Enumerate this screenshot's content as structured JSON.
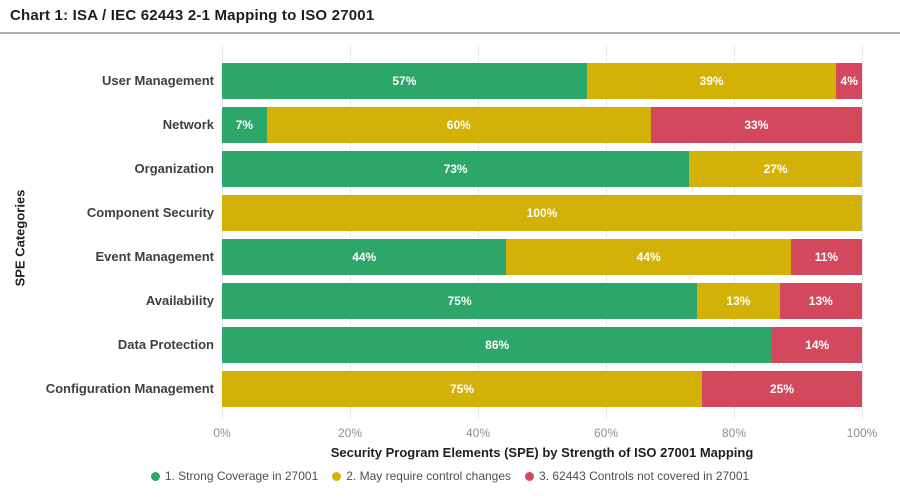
{
  "page": {
    "background": "#ffffff"
  },
  "chart_data": {
    "type": "bar",
    "variant": "horizontal-stacked",
    "title": "Chart 1: ISA / IEC 62443 2-1 Mapping to ISO 27001",
    "xlabel": "Security Program Elements (SPE) by Strength of ISO 27001 Mapping",
    "ylabel": "SPE Categories",
    "x_ticks": [
      "0%",
      "20%",
      "40%",
      "60%",
      "80%",
      "100%"
    ],
    "xlim": [
      0,
      100
    ],
    "grid": "vertical-dotted",
    "legend_position": "bottom",
    "value_suffix": "%",
    "categories": [
      "User Management",
      "Network",
      "Organization",
      "Component Security",
      "Event Management",
      "Availability",
      "Data Protection",
      "Configuration Management"
    ],
    "series": [
      {
        "name": "1. Strong Coverage in 27001",
        "color": "#2da66a",
        "values": [
          57,
          7,
          73,
          0,
          44,
          75,
          86,
          0
        ]
      },
      {
        "name": "2. May require control changes",
        "color": "#d4b106",
        "values": [
          39,
          60,
          27,
          100,
          44,
          13,
          0,
          75
        ]
      },
      {
        "name": "3. 62443 Controls not covered in 27001",
        "color": "#d3485c",
        "values": [
          4,
          33,
          0,
          0,
          11,
          13,
          14,
          25
        ]
      }
    ]
  },
  "style": {
    "divider_color": "#ababab",
    "gridline_color": "#d4d4d4",
    "tick_label_color": "#8f8f8f",
    "category_label_color": "#3f3f3f",
    "bar_label_color": "#ffffff"
  }
}
